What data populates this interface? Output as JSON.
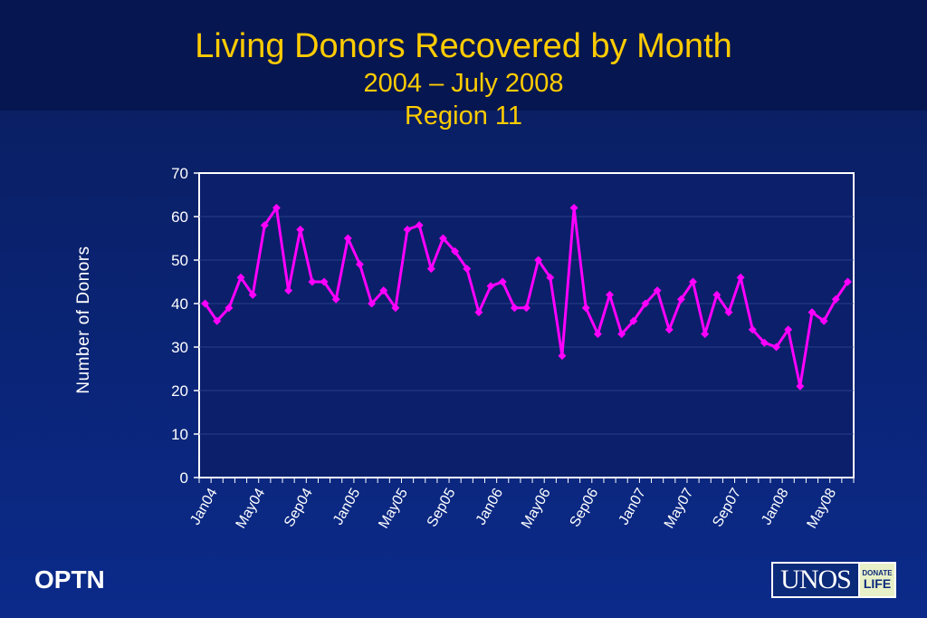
{
  "title": {
    "main": "Living Donors Recovered by Month",
    "sub1": "2004 – July 2008",
    "sub2": "Region 11"
  },
  "footer": {
    "left_text": "OPTN",
    "logo_text": "UNOS",
    "logo_badge_top": "DONATE",
    "logo_badge_bottom": "LIFE"
  },
  "colors": {
    "title": "#ffcc00",
    "series": "#ff00ff",
    "plot_bg": "#0b1f6b",
    "axis_text": "#ffffff"
  },
  "chart_data": {
    "type": "line",
    "title": "Living Donors Recovered by Month",
    "xlabel": "",
    "ylabel": "Number of Donors",
    "ylim": [
      0,
      70
    ],
    "yticks": [
      0,
      10,
      20,
      30,
      40,
      50,
      60,
      70
    ],
    "grid": true,
    "legend": "none",
    "x": [
      "Jan04",
      "Feb04",
      "Mar04",
      "Apr04",
      "May04",
      "Jun04",
      "Jul04",
      "Aug04",
      "Sep04",
      "Oct04",
      "Nov04",
      "Dec04",
      "Jan05",
      "Feb05",
      "Mar05",
      "Apr05",
      "May05",
      "Jun05",
      "Jul05",
      "Aug05",
      "Sep05",
      "Oct05",
      "Nov05",
      "Dec05",
      "Jan06",
      "Feb06",
      "Mar06",
      "Apr06",
      "May06",
      "Jun06",
      "Jul06",
      "Aug06",
      "Sep06",
      "Oct06",
      "Nov06",
      "Dec06",
      "Jan07",
      "Feb07",
      "Mar07",
      "Apr07",
      "May07",
      "Jun07",
      "Jul07",
      "Aug07",
      "Sep07",
      "Oct07",
      "Nov07",
      "Dec07",
      "Jan08",
      "Feb08",
      "Mar08",
      "Apr08",
      "May08",
      "Jun08",
      "Jul08"
    ],
    "x_tick_labels": [
      "Jan04",
      "May04",
      "Sep04",
      "Jan05",
      "May05",
      "Sep05",
      "Jan06",
      "May06",
      "Sep06",
      "Jan07",
      "May07",
      "Sep07",
      "Jan08",
      "May08"
    ],
    "series": [
      {
        "values": [
          40,
          36,
          39,
          46,
          42,
          58,
          62,
          43,
          57,
          45,
          45,
          41,
          55,
          49,
          40,
          43,
          39,
          57,
          58,
          48,
          55,
          52,
          48,
          38,
          44,
          45,
          39,
          39,
          50,
          46,
          28,
          62,
          39,
          33,
          42,
          33,
          36,
          40,
          43,
          34,
          41,
          45,
          33,
          42,
          38,
          46,
          34,
          31,
          30,
          34,
          21,
          38,
          36,
          41,
          45
        ]
      }
    ]
  }
}
